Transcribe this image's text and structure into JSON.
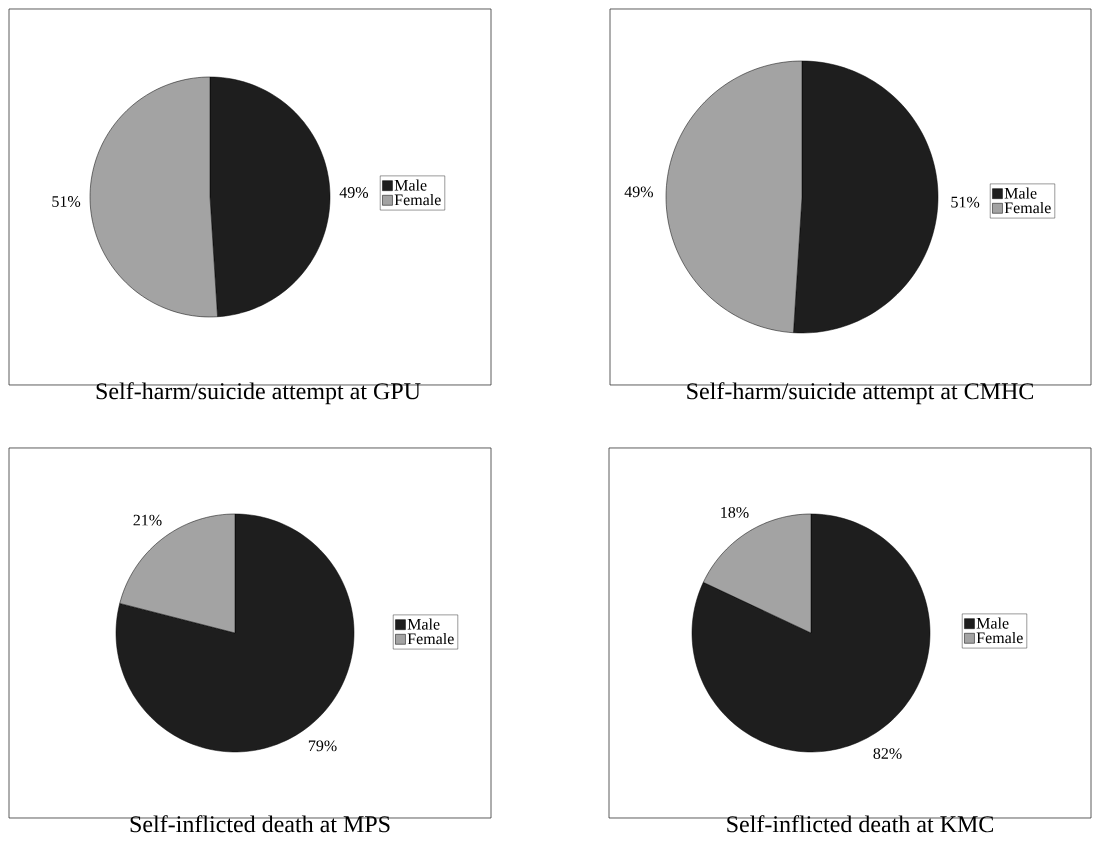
{
  "chart_data": [
    {
      "type": "pie",
      "title": "Self-harm/suicide attempt at GPU",
      "categories": [
        "Male",
        "Female"
      ],
      "values": [
        49,
        51
      ],
      "colors": [
        "#1e1e1e",
        "#a3a3a3"
      ],
      "value_labels": [
        "49%",
        "51%"
      ],
      "legend": "right"
    },
    {
      "type": "pie",
      "title": "Self-harm/suicide attempt at CMHC",
      "categories": [
        "Male",
        "Female"
      ],
      "values": [
        51,
        49
      ],
      "colors": [
        "#1e1e1e",
        "#a3a3a3"
      ],
      "value_labels": [
        "51%",
        "49%"
      ],
      "legend": "right"
    },
    {
      "type": "pie",
      "title": "Self-inflicted death at MPS",
      "categories": [
        "Male",
        "Female"
      ],
      "values": [
        79,
        21
      ],
      "colors": [
        "#1e1e1e",
        "#a3a3a3"
      ],
      "value_labels": [
        "79%",
        "21%"
      ],
      "legend": "right"
    },
    {
      "type": "pie",
      "title": "Self-inflicted death at KMC",
      "categories": [
        "Male",
        "Female"
      ],
      "values": [
        82,
        18
      ],
      "colors": [
        "#1e1e1e",
        "#a3a3a3"
      ],
      "value_labels": [
        "82%",
        "18%"
      ],
      "legend": "right"
    }
  ]
}
